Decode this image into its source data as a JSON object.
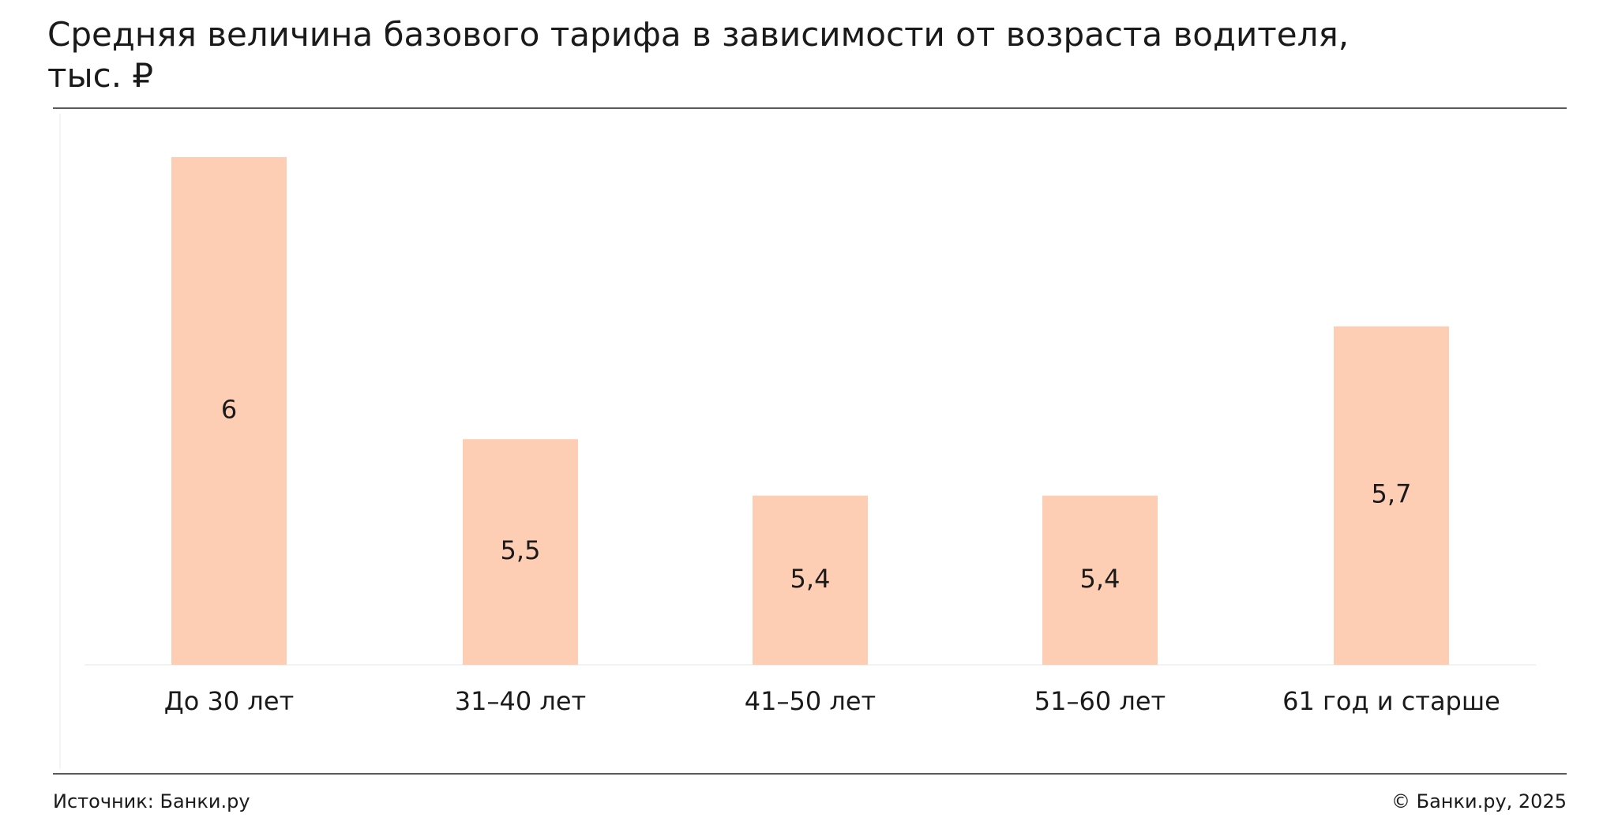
{
  "chart_data": {
    "type": "bar",
    "title": "Средняя величина базового тарифа в зависимости от возраста водителя, тыс. ₽",
    "categories": [
      "До 30 лет",
      "31–40 лет",
      "41–50 лет",
      "51–60 лет",
      "61 год и старше"
    ],
    "values": [
      6,
      5.5,
      5.4,
      5.4,
      5.7
    ],
    "value_labels": [
      "6",
      "5,5",
      "5,4",
      "5,4",
      "5,7"
    ],
    "color": "#fdcdb4",
    "ylim": [
      5.1,
      6
    ],
    "source": "Источник: Банки.ру",
    "copyright": "© Банки.ру, 2025"
  }
}
